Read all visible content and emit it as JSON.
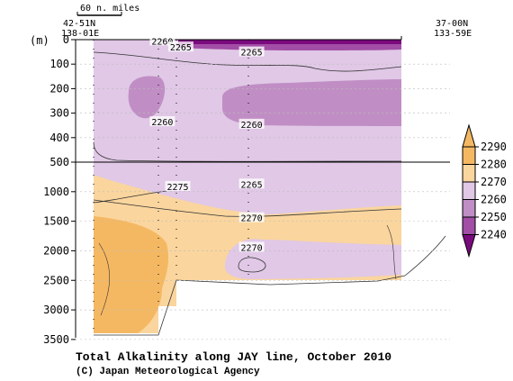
{
  "chart_data": {
    "type": "heatmap",
    "title": "Total Alkalinity along JAY line, October 2010",
    "credit": "(C) Japan Meteorological Agency",
    "xlabel": "",
    "ylabel": "(m)",
    "scale_bar_label": "60 n. miles",
    "start_station": {
      "lat": "42-51N",
      "lon": "138-01E"
    },
    "end_station": {
      "lat": "37-00N",
      "lon": "133-59E"
    },
    "depth_ticks": [
      "0",
      "100",
      "200",
      "300",
      "400",
      "500",
      "1000",
      "1500",
      "2000",
      "2500",
      "3000",
      "3500"
    ],
    "upper_panel_range_m": [
      0,
      500
    ],
    "lower_panel_range_m": [
      500,
      3700
    ],
    "colorbar": {
      "levels": [
        2290,
        2280,
        2270,
        2260,
        2250,
        2240
      ],
      "colors": [
        "#f5b862",
        "#fad59e",
        "#e0c8e6",
        "#c08ec4",
        "#a24ea6",
        "#7a0a7e"
      ],
      "extend": "both"
    },
    "contour_labels": [
      {
        "value": "2260",
        "x_frac": 0.2,
        "depth": 5
      },
      {
        "value": "2265",
        "x_frac": 0.26,
        "depth": 30
      },
      {
        "value": "2265",
        "x_frac": 0.49,
        "depth": 50
      },
      {
        "value": "2260",
        "x_frac": 0.2,
        "depth": 335
      },
      {
        "value": "2260",
        "x_frac": 0.49,
        "depth": 345
      },
      {
        "value": "2275",
        "x_frac": 0.25,
        "depth": 910
      },
      {
        "value": "2265",
        "x_frac": 0.49,
        "depth": 870
      },
      {
        "value": "2270",
        "x_frac": 0.49,
        "depth": 1440
      },
      {
        "value": "2270",
        "x_frac": 0.49,
        "depth": 1940
      }
    ],
    "legend": "right"
  }
}
